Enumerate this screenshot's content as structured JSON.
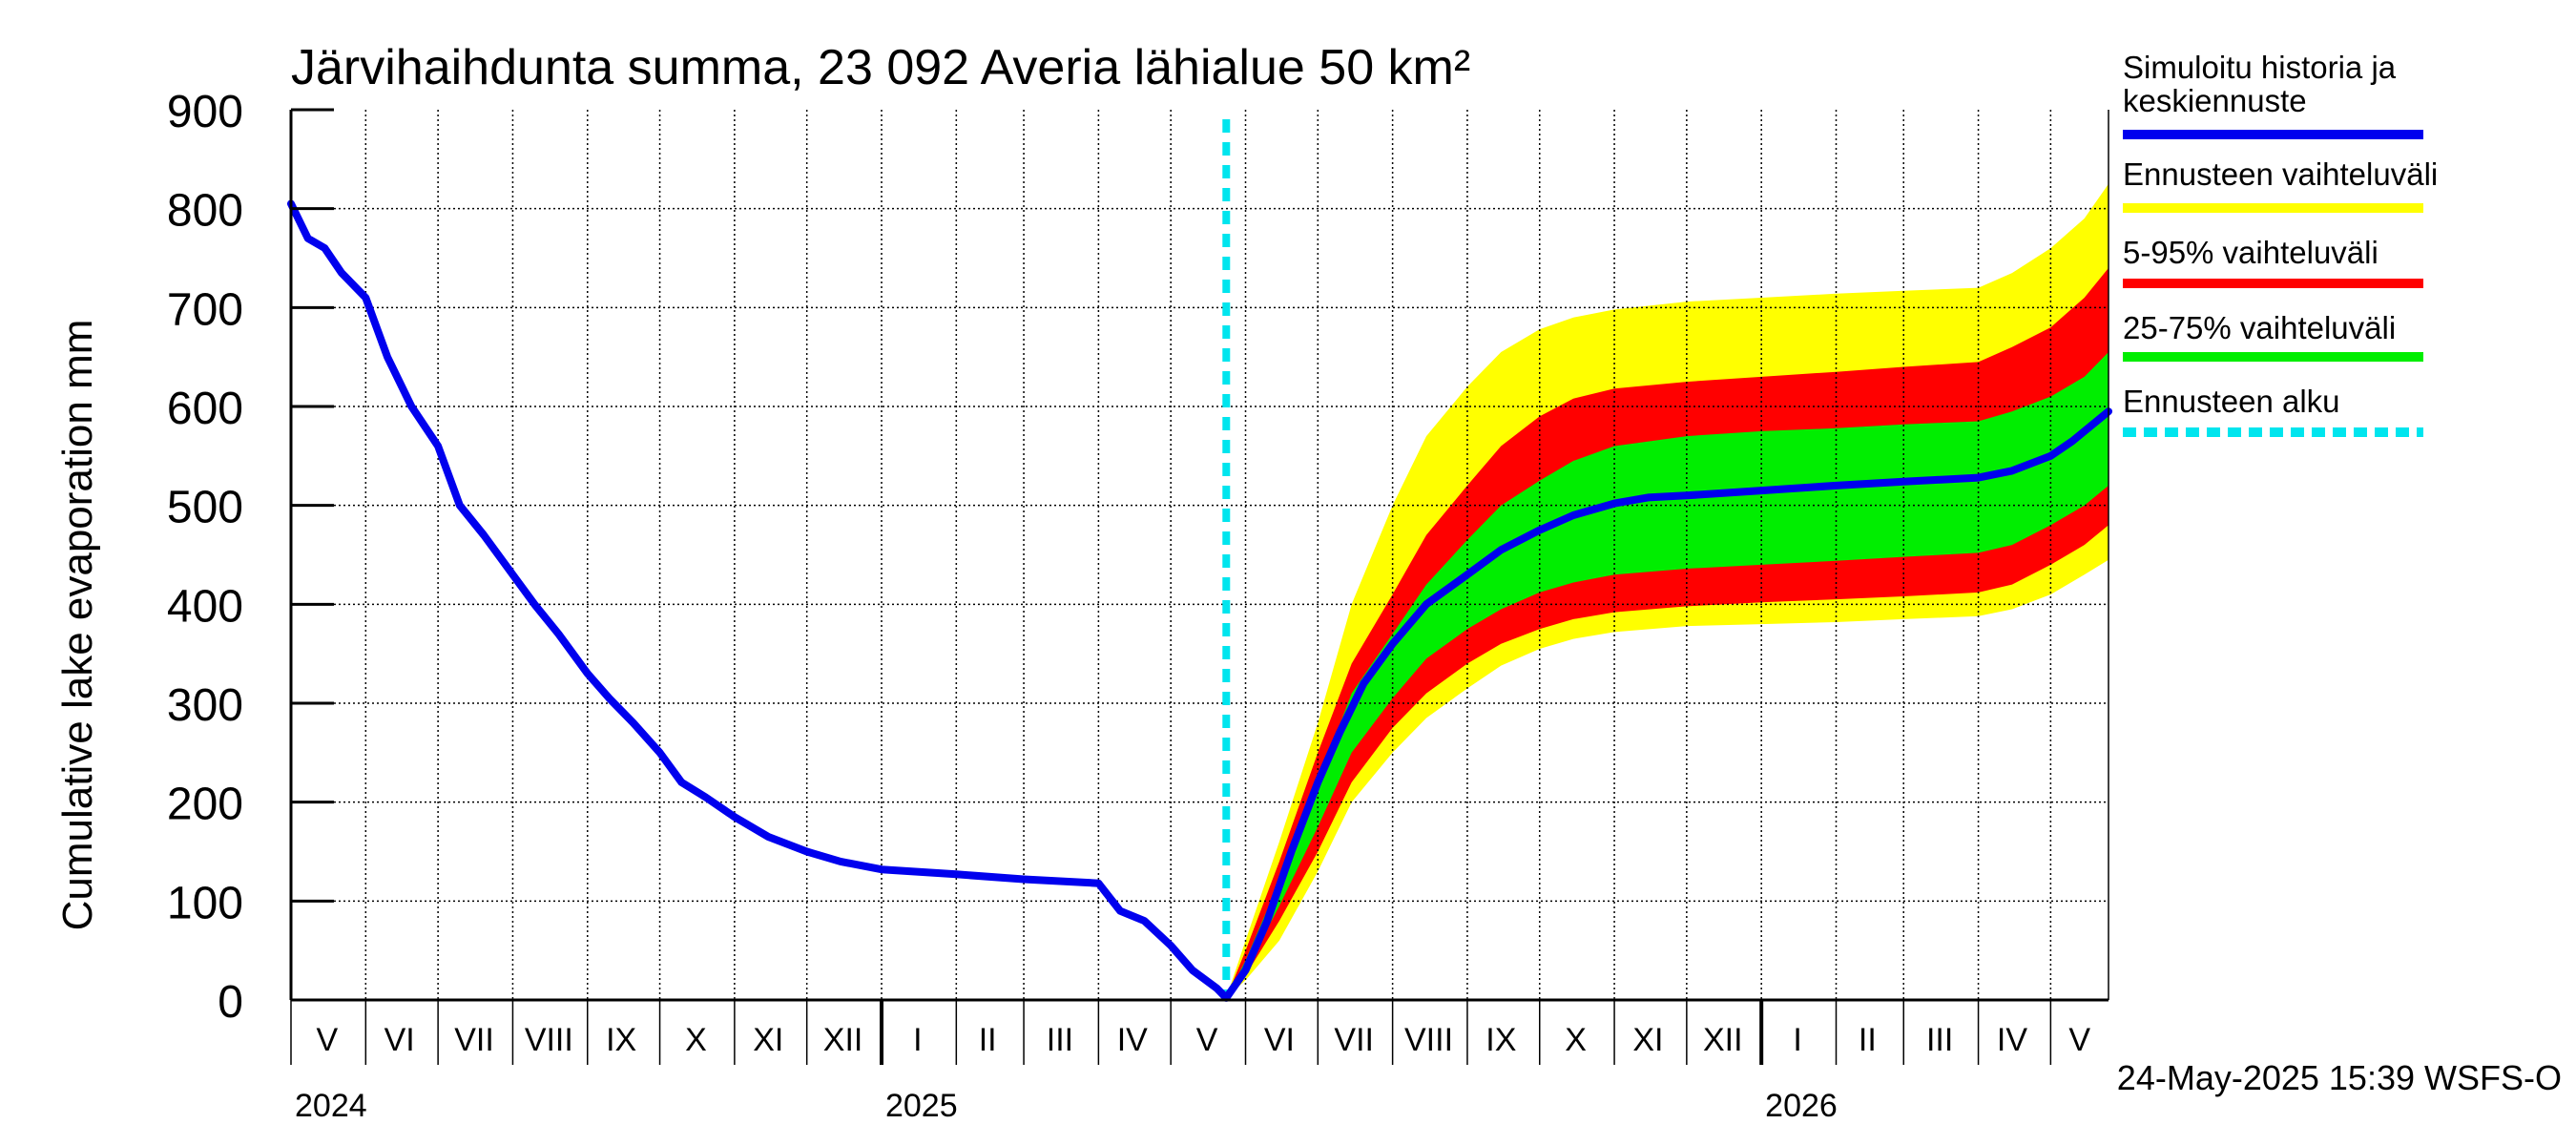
{
  "chart_data": {
    "type": "area",
    "title": "Järvihaihdunta summa, 23 092 Averia lähialue 50 km²",
    "ylabel": "Cumulative lake evaporation   mm",
    "ylim": [
      0,
      900
    ],
    "yticks": [
      0,
      100,
      200,
      300,
      400,
      500,
      600,
      700,
      800,
      900
    ],
    "xlim": [
      "2024-05-01",
      "2026-05-25"
    ],
    "grid": true,
    "legend_position": "right",
    "month_labels": [
      {
        "label": "V",
        "date": "2024-05-16"
      },
      {
        "label": "VI",
        "date": "2024-06-15"
      },
      {
        "label": "VII",
        "date": "2024-07-16"
      },
      {
        "label": "VIII",
        "date": "2024-08-16"
      },
      {
        "label": "IX",
        "date": "2024-09-15"
      },
      {
        "label": "X",
        "date": "2024-10-16"
      },
      {
        "label": "XI",
        "date": "2024-11-15"
      },
      {
        "label": "XII",
        "date": "2024-12-16"
      },
      {
        "label": "I",
        "date": "2025-01-16"
      },
      {
        "label": "II",
        "date": "2025-02-14"
      },
      {
        "label": "III",
        "date": "2025-03-16"
      },
      {
        "label": "IV",
        "date": "2025-04-15"
      },
      {
        "label": "V",
        "date": "2025-05-16"
      },
      {
        "label": "VI",
        "date": "2025-06-15"
      },
      {
        "label": "VII",
        "date": "2025-07-16"
      },
      {
        "label": "VIII",
        "date": "2025-08-16"
      },
      {
        "label": "IX",
        "date": "2025-09-15"
      },
      {
        "label": "X",
        "date": "2025-10-16"
      },
      {
        "label": "XI",
        "date": "2025-11-15"
      },
      {
        "label": "XII",
        "date": "2025-12-16"
      },
      {
        "label": "I",
        "date": "2026-01-16"
      },
      {
        "label": "II",
        "date": "2026-02-14"
      },
      {
        "label": "III",
        "date": "2026-03-16"
      },
      {
        "label": "IV",
        "date": "2026-04-15"
      },
      {
        "label": "V",
        "date": "2026-05-13"
      }
    ],
    "year_labels": [
      {
        "label": "2024",
        "date": "2024-05-01"
      },
      {
        "label": "2025",
        "date": "2025-01-01"
      },
      {
        "label": "2026",
        "date": "2026-01-01"
      }
    ],
    "forecast_start": "2025-05-24",
    "series": [
      {
        "name": "Simuloitu historia ja keskiennuste",
        "color": "#0000ee",
        "x": [
          "2024-05-01",
          "2024-05-08",
          "2024-05-15",
          "2024-05-22",
          "2024-06-01",
          "2024-06-10",
          "2024-06-20",
          "2024-07-01",
          "2024-07-10",
          "2024-07-20",
          "2024-08-01",
          "2024-08-10",
          "2024-08-20",
          "2024-09-01",
          "2024-09-10",
          "2024-09-20",
          "2024-10-01",
          "2024-10-10",
          "2024-10-20",
          "2024-11-01",
          "2024-11-15",
          "2024-12-01",
          "2024-12-15",
          "2025-01-01",
          "2025-02-01",
          "2025-03-01",
          "2025-04-01",
          "2025-04-10",
          "2025-04-20",
          "2025-05-01",
          "2025-05-10",
          "2025-05-20",
          "2025-05-24",
          "2025-06-01",
          "2025-06-10",
          "2025-06-20",
          "2025-07-01",
          "2025-07-10",
          "2025-07-20",
          "2025-08-01",
          "2025-08-15",
          "2025-09-01",
          "2025-09-15",
          "2025-10-01",
          "2025-10-15",
          "2025-11-01",
          "2025-11-15",
          "2025-12-01",
          "2026-01-01",
          "2026-02-01",
          "2026-03-01",
          "2026-04-01",
          "2026-04-15",
          "2026-05-01",
          "2026-05-10",
          "2026-05-25"
        ],
        "y": [
          805,
          770,
          760,
          735,
          710,
          650,
          600,
          560,
          500,
          470,
          430,
          400,
          370,
          330,
          305,
          280,
          250,
          220,
          205,
          185,
          165,
          150,
          140,
          132,
          127,
          122,
          118,
          90,
          80,
          55,
          30,
          12,
          2,
          30,
          80,
          150,
          220,
          270,
          320,
          360,
          400,
          430,
          455,
          475,
          490,
          502,
          508,
          510,
          515,
          520,
          524,
          528,
          535,
          550,
          565,
          595
        ]
      }
    ],
    "bands": [
      {
        "name": "Ennusteen vaihteluväli",
        "color": "#ffff00",
        "x": [
          "2025-05-24",
          "2025-06-01",
          "2025-06-15",
          "2025-07-01",
          "2025-07-15",
          "2025-08-01",
          "2025-08-15",
          "2025-09-01",
          "2025-09-15",
          "2025-10-01",
          "2025-10-15",
          "2025-11-01",
          "2025-12-01",
          "2026-01-01",
          "2026-02-01",
          "2026-03-01",
          "2026-04-01",
          "2026-04-15",
          "2026-05-01",
          "2026-05-15",
          "2026-05-25"
        ],
        "upper": [
          2,
          60,
          160,
          280,
          400,
          500,
          570,
          620,
          655,
          678,
          690,
          698,
          706,
          710,
          714,
          717,
          720,
          735,
          760,
          790,
          825
        ],
        "lower": [
          2,
          20,
          60,
          130,
          200,
          250,
          285,
          315,
          338,
          355,
          365,
          372,
          378,
          380,
          382,
          385,
          388,
          395,
          410,
          430,
          445
        ]
      },
      {
        "name": "5-95% vaihteluväli",
        "color": "#ff0000",
        "x": [
          "2025-05-24",
          "2025-06-01",
          "2025-06-15",
          "2025-07-01",
          "2025-07-15",
          "2025-08-01",
          "2025-08-15",
          "2025-09-01",
          "2025-09-15",
          "2025-10-01",
          "2025-10-15",
          "2025-11-01",
          "2025-12-01",
          "2026-01-01",
          "2026-02-01",
          "2026-03-01",
          "2026-04-01",
          "2026-04-15",
          "2026-05-01",
          "2026-05-15",
          "2026-05-25"
        ],
        "upper": [
          2,
          50,
          140,
          250,
          340,
          410,
          470,
          520,
          560,
          590,
          608,
          618,
          625,
          630,
          635,
          640,
          645,
          660,
          680,
          710,
          740
        ],
        "lower": [
          2,
          25,
          80,
          150,
          220,
          275,
          310,
          340,
          360,
          375,
          385,
          392,
          398,
          402,
          405,
          408,
          412,
          420,
          440,
          460,
          480
        ]
      },
      {
        "name": "25-75% vaihteluväli",
        "color": "#00ee00",
        "x": [
          "2025-05-24",
          "2025-06-01",
          "2025-06-15",
          "2025-07-01",
          "2025-07-15",
          "2025-08-01",
          "2025-08-15",
          "2025-09-01",
          "2025-09-15",
          "2025-10-01",
          "2025-10-15",
          "2025-11-01",
          "2025-12-01",
          "2026-01-01",
          "2026-02-01",
          "2026-03-01",
          "2026-04-01",
          "2026-04-15",
          "2026-05-01",
          "2026-05-15",
          "2026-05-25"
        ],
        "upper": [
          2,
          40,
          120,
          220,
          310,
          370,
          420,
          465,
          500,
          525,
          545,
          560,
          570,
          575,
          578,
          582,
          585,
          595,
          610,
          630,
          655
        ],
        "lower": [
          2,
          30,
          95,
          175,
          250,
          305,
          345,
          375,
          395,
          412,
          422,
          430,
          436,
          440,
          444,
          448,
          452,
          460,
          480,
          500,
          520
        ]
      }
    ],
    "legend": [
      {
        "label": "Simuloitu historia ja\nkeskiennuste",
        "color": "#0000ee",
        "style": "solid"
      },
      {
        "label": "Ennusteen vaihteluväli",
        "color": "#ffff00",
        "style": "solid"
      },
      {
        "label": "5-95% vaihteluväli",
        "color": "#ff0000",
        "style": "solid"
      },
      {
        "label": "25-75% vaihteluväli",
        "color": "#00ee00",
        "style": "solid"
      },
      {
        "label": "Ennusteen alku",
        "color": "#00e5ee",
        "style": "dashed"
      }
    ],
    "footer": "24-May-2025 15:39 WSFS-O"
  }
}
